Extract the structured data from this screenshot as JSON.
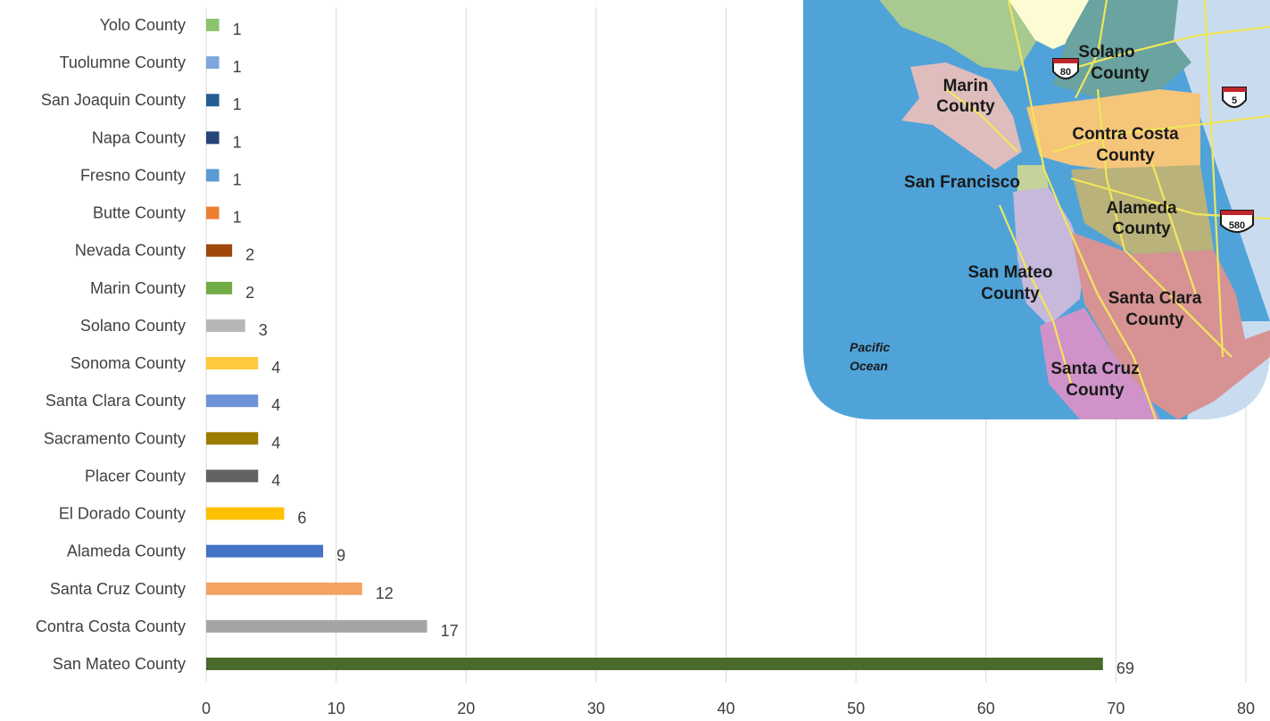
{
  "chart_data": {
    "type": "bar",
    "orientation": "horizontal",
    "categories": [
      "San Mateo County",
      "Contra Costa County",
      "Santa Cruz County",
      "Alameda County",
      "El Dorado County",
      "Placer County",
      "Sacramento County",
      "Santa Clara County",
      "Sonoma County",
      "Solano County",
      "Marin County",
      "Nevada County",
      "Butte County",
      "Fresno County",
      "Napa County",
      "San Joaquin County",
      "Tuolumne County",
      "Yolo County"
    ],
    "values": [
      69,
      17,
      12,
      9,
      6,
      4,
      4,
      4,
      4,
      3,
      2,
      2,
      1,
      1,
      1,
      1,
      1,
      1
    ],
    "colors": [
      "#4a6a2c",
      "#a5a5a5",
      "#f4a261",
      "#4472c4",
      "#ffc000",
      "#636363",
      "#9c7a00",
      "#6f93d6",
      "#ffc83d",
      "#b7b7b7",
      "#70ad47",
      "#9e480e",
      "#ed7d31",
      "#5b9bd5",
      "#264478",
      "#255e91",
      "#7ea6dc",
      "#8cc46e"
    ],
    "xlim": [
      0,
      80
    ],
    "xticks": [
      0,
      10,
      20,
      30,
      40,
      50,
      60,
      70,
      80
    ],
    "grid": true,
    "data_labels": true,
    "title": "",
    "xlabel": "",
    "ylabel": ""
  },
  "map_inset": {
    "labels": {
      "solano": [
        "Solano",
        "County"
      ],
      "marin": [
        "Marin",
        "County"
      ],
      "contra_costa": [
        "Contra Costa",
        "County"
      ],
      "san_francisco": [
        "San Francisco"
      ],
      "alameda": [
        "Alameda",
        "County"
      ],
      "san_mateo": [
        "San Mateo",
        "County"
      ],
      "santa_clara": [
        "Santa Clara",
        "County"
      ],
      "santa_cruz": [
        "Santa Cruz",
        "County"
      ],
      "ocean": [
        "Pacific",
        "Ocean"
      ]
    },
    "highways": [
      "80",
      "5",
      "580"
    ],
    "colors": {
      "water": "#4fa3d9",
      "inland": "#c9dcef",
      "sonoma": "#a8c98f",
      "napa": "#fdfbd4",
      "solano": "#6aa3a0",
      "marin": "#dfbdbd",
      "contra_costa": "#f5c57a",
      "san_francisco": "#c3d39a",
      "alameda": "#b9b27b",
      "san_mateo": "#c6b9dc",
      "santa_clara": "#d79393",
      "santa_cruz": "#cf93c9",
      "roads": "#f1e65a"
    }
  }
}
